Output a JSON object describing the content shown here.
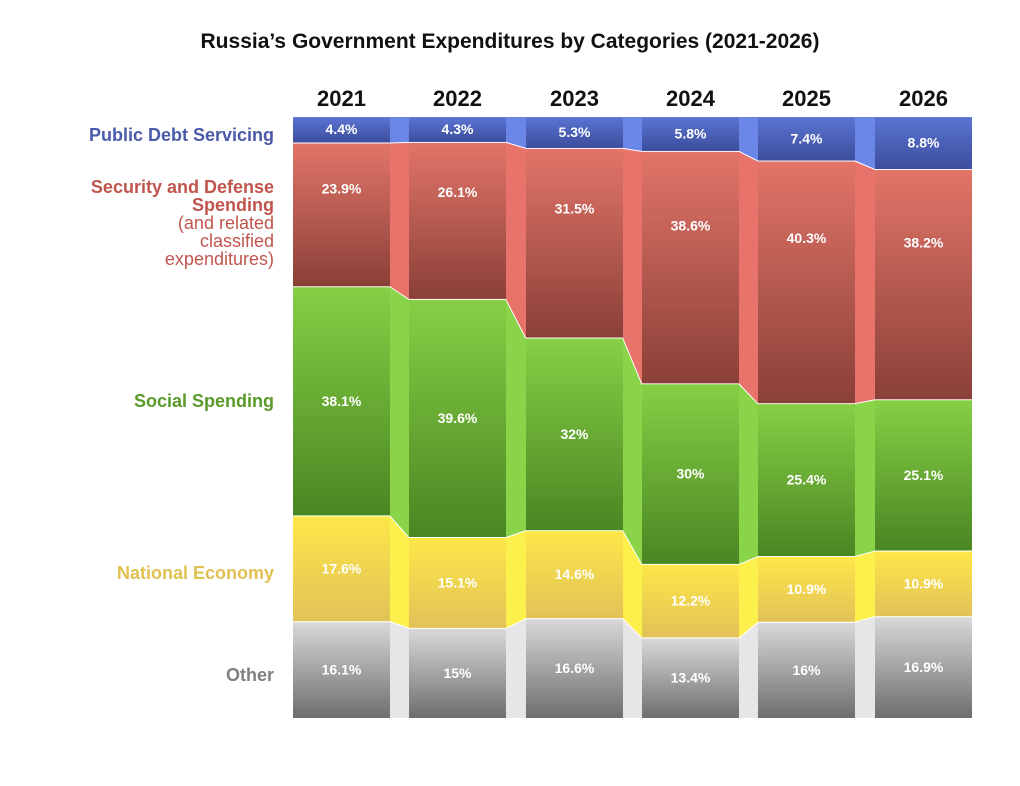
{
  "chart_data": {
    "type": "bar",
    "stacked": true,
    "title": "Russia’s Government Expenditures by Categories (2021-2026)",
    "categories": [
      "2021",
      "2022",
      "2023",
      "2024",
      "2025",
      "2026"
    ],
    "unit": "%",
    "series": [
      {
        "name": "Other",
        "label": "Other",
        "color_light": "#e6e6e6",
        "color_top": "#d8d8d8",
        "color_bottom": "#6e6e6e",
        "text_color": "#808080",
        "values": [
          16.1,
          15,
          16.6,
          13.4,
          16,
          16.9
        ],
        "labels": [
          "16.1%",
          "15%",
          "16.6%",
          "13.4%",
          "16%",
          "16.9%"
        ]
      },
      {
        "name": "National Economy",
        "label": "National Economy",
        "color_light": "#fdf04c",
        "color_top": "#fde648",
        "color_bottom": "#e2c258",
        "text_color": "#e0c050",
        "values": [
          17.6,
          15.1,
          14.6,
          12.2,
          10.9,
          10.9
        ],
        "labels": [
          "17.6%",
          "15.1%",
          "14.6%",
          "12.2%",
          "10.9%",
          "10.9%"
        ]
      },
      {
        "name": "Social Spending",
        "label": "Social Spending",
        "color_light": "#8ad44a",
        "color_top": "#86cf45",
        "color_bottom": "#4a8622",
        "text_color": "#5a9a2a",
        "values": [
          38.1,
          39.6,
          32,
          30,
          25.4,
          25.1
        ],
        "labels": [
          "38.1%",
          "39.6%",
          "32%",
          "30%",
          "25.4%",
          "25.1%"
        ]
      },
      {
        "name": "Security and Defense Spending",
        "label": "Security and Defense Spending",
        "sublabel": "(and related classified expenditures)",
        "color_light": "#e8736a",
        "color_top": "#e27468",
        "color_bottom": "#8a4038",
        "text_color": "#c0554e",
        "values": [
          23.9,
          26.1,
          31.5,
          38.6,
          40.3,
          38.2
        ],
        "labels": [
          "23.9%",
          "26.1%",
          "31.5%",
          "38.6%",
          "40.3%",
          "38.2%"
        ]
      },
      {
        "name": "Public Debt Servicing",
        "label": "Public Debt Servicing",
        "color_light": "#6a86e6",
        "color_top": "#5a74d2",
        "color_bottom": "#3c4d9c",
        "text_color": "#4a5aa8",
        "values": [
          4.4,
          4.3,
          5.3,
          5.8,
          7.4,
          8.8
        ],
        "labels": [
          "4.4%",
          "4.3%",
          "5.3%",
          "5.8%",
          "7.4%",
          "8.8%"
        ]
      }
    ],
    "legend": "left"
  }
}
